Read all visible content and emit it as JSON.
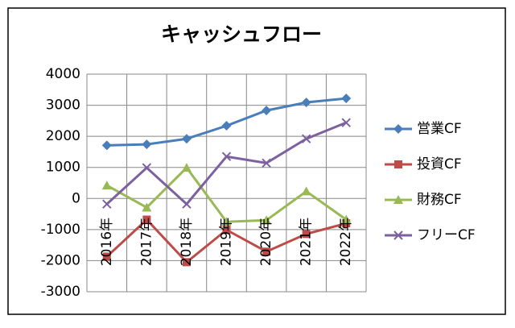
{
  "chart_data": {
    "type": "line",
    "title": "キャッシュフロー",
    "categories": [
      "2016年",
      "2017年",
      "2018年",
      "2019年",
      "2020年",
      "2021年",
      "2022年"
    ],
    "series": [
      {
        "name": "営業CF",
        "color": "#4a7ebb",
        "marker": "diamond",
        "values": [
          1710,
          1740,
          1920,
          2340,
          2830,
          3090,
          3220
        ]
      },
      {
        "name": "投資CF",
        "color": "#be4b48",
        "marker": "square",
        "values": [
          -1870,
          -680,
          -2050,
          -1010,
          -1710,
          -1140,
          -800
        ]
      },
      {
        "name": "財務CF",
        "color": "#98b954",
        "marker": "triangle",
        "values": [
          420,
          -290,
          990,
          -750,
          -700,
          230,
          -680
        ]
      },
      {
        "name": "フリーCF",
        "color": "#7d60a0",
        "marker": "x",
        "values": [
          -180,
          990,
          -180,
          1350,
          1140,
          1920,
          2440
        ]
      }
    ],
    "ylim": [
      -3000,
      4000
    ],
    "yticks": [
      -3000,
      -2000,
      -1000,
      0,
      1000,
      2000,
      3000,
      4000
    ],
    "grid": true,
    "legend": "right"
  }
}
